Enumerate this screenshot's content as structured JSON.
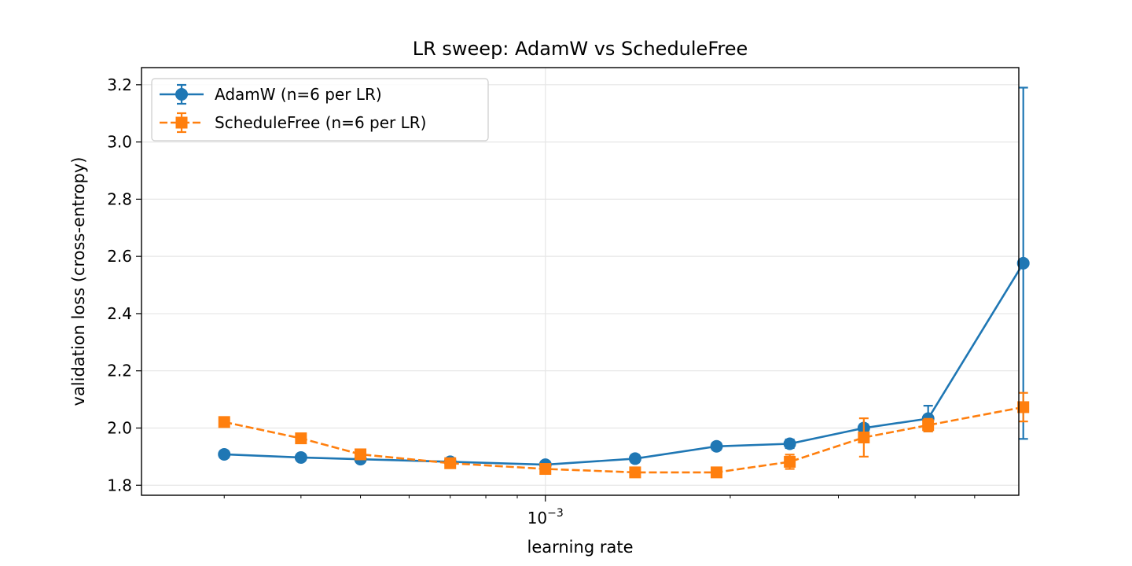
{
  "chart_data": {
    "type": "line",
    "title": "LR sweep: AdamW vs ScheduleFree",
    "xlabel": "learning rate",
    "ylabel": "validation loss (cross-entropy)",
    "xscale": "log",
    "xlim": [
      0.00022,
      0.0059
    ],
    "ylim": [
      1.765,
      3.26
    ],
    "x_tick_labels": [
      {
        "value": 0.001,
        "base": "10",
        "exp": "−3"
      }
    ],
    "y_ticks": [
      1.8,
      2.0,
      2.2,
      2.4,
      2.6,
      2.8,
      3.0,
      3.2
    ],
    "y_tick_labels": [
      "1.8",
      "2.0",
      "2.2",
      "2.4",
      "2.6",
      "2.8",
      "3.0",
      "3.2"
    ],
    "grid": true,
    "legend_position": "upper-left",
    "x": [
      0.0003,
      0.0004,
      0.0005,
      0.0007,
      0.001,
      0.0014,
      0.0019,
      0.0025,
      0.0033,
      0.0042,
      0.006
    ],
    "series": [
      {
        "name": "AdamW (n=6 per LR)",
        "marker": "circle",
        "linestyle": "solid",
        "color": "#1f77b4",
        "values": [
          1.908,
          1.897,
          1.891,
          1.882,
          1.872,
          1.893,
          1.936,
          1.945,
          2.0,
          2.033,
          2.576
        ],
        "err": [
          0.008,
          0.006,
          0.008,
          0.008,
          0.008,
          0.013,
          0.013,
          0.015,
          0.013,
          0.045,
          0.614
        ]
      },
      {
        "name": "ScheduleFree (n=6 per LR)",
        "marker": "square",
        "linestyle": "dashed",
        "color": "#ff7f0e",
        "values": [
          2.021,
          1.964,
          1.908,
          1.877,
          1.857,
          1.845,
          1.845,
          1.882,
          1.967,
          2.01,
          2.073
        ],
        "err": [
          0.008,
          0.008,
          0.008,
          0.008,
          0.008,
          0.01,
          0.01,
          0.025,
          0.067,
          0.022,
          0.05
        ]
      }
    ]
  }
}
